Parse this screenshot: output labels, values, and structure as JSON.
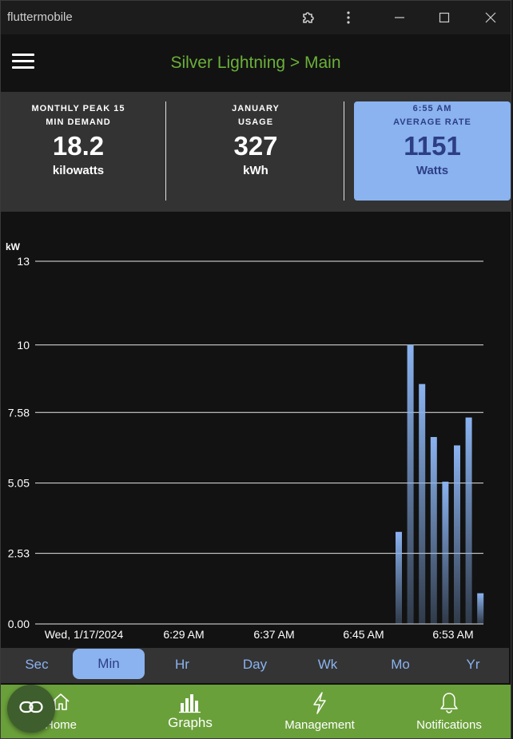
{
  "window": {
    "title": "fluttermobile",
    "extension_icon": "puzzle-icon",
    "more_icon": "more-vertical-icon",
    "minimize_icon": "minimize-icon",
    "maximize_icon": "maximize-icon",
    "close_icon": "close-icon"
  },
  "appbar": {
    "title": "Silver Lightning > Main",
    "title_color": "#6bb03a",
    "menu_icon": "hamburger-menu-icon"
  },
  "stats": [
    {
      "label_line1": "MONTHLY PEAK 15",
      "label_line2": "MIN DEMAND",
      "value": "18.2",
      "unit": "kilowatts"
    },
    {
      "label_line1": "JANUARY",
      "label_line2": "USAGE",
      "value": "327",
      "unit": "kWh"
    },
    {
      "label_line1": "6:55 AM",
      "label_line2": "AVERAGE RATE",
      "value": "1151",
      "unit": "Watts",
      "highlight_color": "#8ab3f0"
    }
  ],
  "chart_data": {
    "type": "bar",
    "ylabel": "kW",
    "ylim": [
      0,
      13
    ],
    "yticks": [
      "13",
      "10",
      "7.58",
      "5.05",
      "2.53",
      "0.00"
    ],
    "ytick_values": [
      13,
      10,
      7.58,
      5.05,
      2.53,
      0
    ],
    "xtick_labels": [
      "Wed, 1/17/2024",
      "6:29 AM",
      "6:37 AM",
      "6:45 AM",
      "6:53 AM"
    ],
    "grid": true,
    "bar_color": "#8ab3f0",
    "categories": [
      "6:48 AM",
      "6:49 AM",
      "6:50 AM",
      "6:51 AM",
      "6:52 AM",
      "6:53 AM",
      "6:54 AM",
      "6:55 AM"
    ],
    "values": [
      3.3,
      10.0,
      8.6,
      6.7,
      5.1,
      6.4,
      7.4,
      1.1
    ]
  },
  "range_tabs": {
    "items": [
      "Sec",
      "Min",
      "Hr",
      "Day",
      "Wk",
      "Mo",
      "Yr"
    ],
    "active": "Min",
    "active_color": "#8ab3f0"
  },
  "bottom_nav": {
    "items": [
      {
        "label": "Home",
        "icon": "home-icon"
      },
      {
        "label": "Graphs",
        "icon": "bar-chart-icon"
      },
      {
        "label": "Management",
        "icon": "lightning-icon"
      },
      {
        "label": "Notifications",
        "icon": "bell-icon"
      }
    ],
    "background": "#6aa03a",
    "fab_icon": "link-icon"
  }
}
